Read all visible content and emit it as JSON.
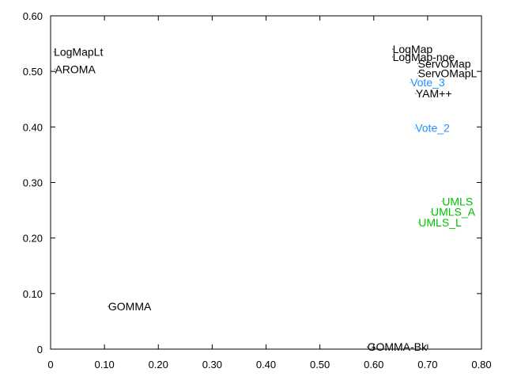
{
  "chart_data": {
    "type": "scatter",
    "title": "",
    "xlabel": "",
    "ylabel": "",
    "xlim": [
      0,
      0.8
    ],
    "ylim": [
      0,
      0.6
    ],
    "x_ticks": [
      0,
      0.1,
      0.2,
      0.3,
      0.4,
      0.5,
      0.6,
      0.7,
      0.8
    ],
    "x_tick_labels": [
      "0",
      "0.10",
      "0.20",
      "0.30",
      "0.40",
      "0.50",
      "0.60",
      "0.70",
      "0.80"
    ],
    "y_ticks": [
      0,
      0.1,
      0.2,
      0.3,
      0.4,
      0.5,
      0.6
    ],
    "y_tick_labels": [
      "0",
      "0.10",
      "0.20",
      "0.30",
      "0.40",
      "0.50",
      "0.60"
    ],
    "grid": false,
    "points": [
      {
        "label": "LogMapLt",
        "x": 0.006,
        "y": 0.535,
        "color": "#000000"
      },
      {
        "label": "AROMA",
        "x": 0.008,
        "y": 0.504,
        "color": "#000000"
      },
      {
        "label": "LogMap",
        "x": 0.635,
        "y": 0.54,
        "color": "#000000"
      },
      {
        "label": "LogMap-noe",
        "x": 0.635,
        "y": 0.526,
        "color": "#000000"
      },
      {
        "label": "ServOMap",
        "x": 0.682,
        "y": 0.514,
        "color": "#000000"
      },
      {
        "label": "ServOMapL",
        "x": 0.682,
        "y": 0.497,
        "color": "#000000"
      },
      {
        "label": "Vote_3",
        "x": 0.668,
        "y": 0.48,
        "color": "#1e90ff"
      },
      {
        "label": "YAM++",
        "x": 0.678,
        "y": 0.46,
        "color": "#000000"
      },
      {
        "label": "Vote_2",
        "x": 0.677,
        "y": 0.398,
        "color": "#1e90ff"
      },
      {
        "label": "UMLS",
        "x": 0.727,
        "y": 0.266,
        "color": "#00c000"
      },
      {
        "label": "UMLS_A",
        "x": 0.706,
        "y": 0.247,
        "color": "#00c000"
      },
      {
        "label": "UMLS_L",
        "x": 0.683,
        "y": 0.228,
        "color": "#00c000"
      },
      {
        "label": "GOMMA",
        "x": 0.107,
        "y": 0.077,
        "color": "#000000"
      },
      {
        "label": "GOMMA-Bk",
        "x": 0.588,
        "y": 0.004,
        "color": "#000000"
      }
    ]
  }
}
